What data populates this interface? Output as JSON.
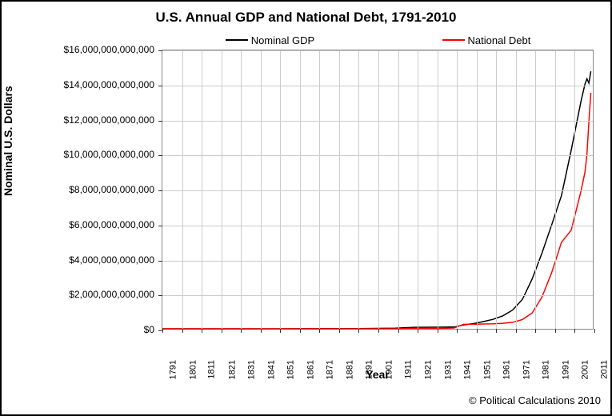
{
  "chart": {
    "type": "line",
    "title": "U.S. Annual GDP and National Debt, 1791-2010",
    "xlabel": "Year",
    "ylabel": "Nominal U.S. Dollars",
    "copyright": "© Political Calculations 2010",
    "border_color": "#000000",
    "background_color": "#ffffff",
    "grid_color": "#cccccc",
    "axis_color": "#888888",
    "title_fontsize": 17,
    "label_fontsize": 14,
    "tick_fontsize": 12,
    "xlim": [
      1791,
      2011
    ],
    "ylim": [
      0,
      16000000000000
    ],
    "ytick_step": 2000000000000,
    "xtick_step": 10,
    "ytick_labels": [
      "$0",
      "$2,000,000,000,000",
      "$4,000,000,000,000",
      "$6,000,000,000,000",
      "$8,000,000,000,000",
      "$10,000,000,000,000",
      "$12,000,000,000,000",
      "$14,000,000,000,000",
      "$16,000,000,000,000"
    ],
    "xtick_labels": [
      "1791",
      "1801",
      "1811",
      "1821",
      "1831",
      "1841",
      "1851",
      "1861",
      "1871",
      "1881",
      "1891",
      "1901",
      "1911",
      "1921",
      "1931",
      "1941",
      "1951",
      "1961",
      "1971",
      "1981",
      "1991",
      "2001",
      "2011"
    ],
    "legend": {
      "position": "top",
      "items": [
        {
          "label": "Nominal GDP",
          "color": "#000000",
          "line_width": 1.5
        },
        {
          "label": "National Debt",
          "color": "#ff0000",
          "line_width": 1.5
        }
      ]
    },
    "series": [
      {
        "name": "Nominal GDP",
        "color": "#000000",
        "line_width": 1.5,
        "years": [
          1791,
          1800,
          1810,
          1820,
          1830,
          1840,
          1850,
          1860,
          1870,
          1880,
          1890,
          1900,
          1910,
          1920,
          1930,
          1940,
          1945,
          1950,
          1955,
          1960,
          1965,
          1970,
          1975,
          1980,
          1985,
          1990,
          1995,
          2000,
          2005,
          2007,
          2008,
          2009,
          2010
        ],
        "values": [
          0.2,
          0.5,
          0.7,
          0.7,
          1.0,
          1.6,
          2.6,
          4.4,
          7.8,
          10.6,
          13.8,
          20.8,
          33.4,
          88.4,
          91.2,
          101.4,
          223,
          300,
          415,
          543,
          744,
          1076,
          1689,
          2863,
          4347,
          5980,
          7664,
          10285,
          13094,
          14062,
          14369,
          14119,
          14800
        ]
      },
      {
        "name": "National Debt",
        "color": "#ff0000",
        "line_width": 1.5,
        "years": [
          1791,
          1800,
          1810,
          1820,
          1830,
          1840,
          1850,
          1860,
          1870,
          1880,
          1890,
          1900,
          1910,
          1920,
          1930,
          1940,
          1945,
          1950,
          1955,
          1960,
          1965,
          1970,
          1975,
          1980,
          1985,
          1990,
          1995,
          2000,
          2005,
          2007,
          2008,
          2009,
          2010
        ],
        "values": [
          0.075,
          0.083,
          0.053,
          0.091,
          0.049,
          0.004,
          0.063,
          0.065,
          2.4,
          2.1,
          1.1,
          2.1,
          2.7,
          26.0,
          16.2,
          43.0,
          259,
          257,
          274,
          286,
          317,
          371,
          533,
          908,
          1823,
          3233,
          4974,
          5674,
          7933,
          9008,
          10025,
          11910,
          13562
        ]
      }
    ]
  }
}
